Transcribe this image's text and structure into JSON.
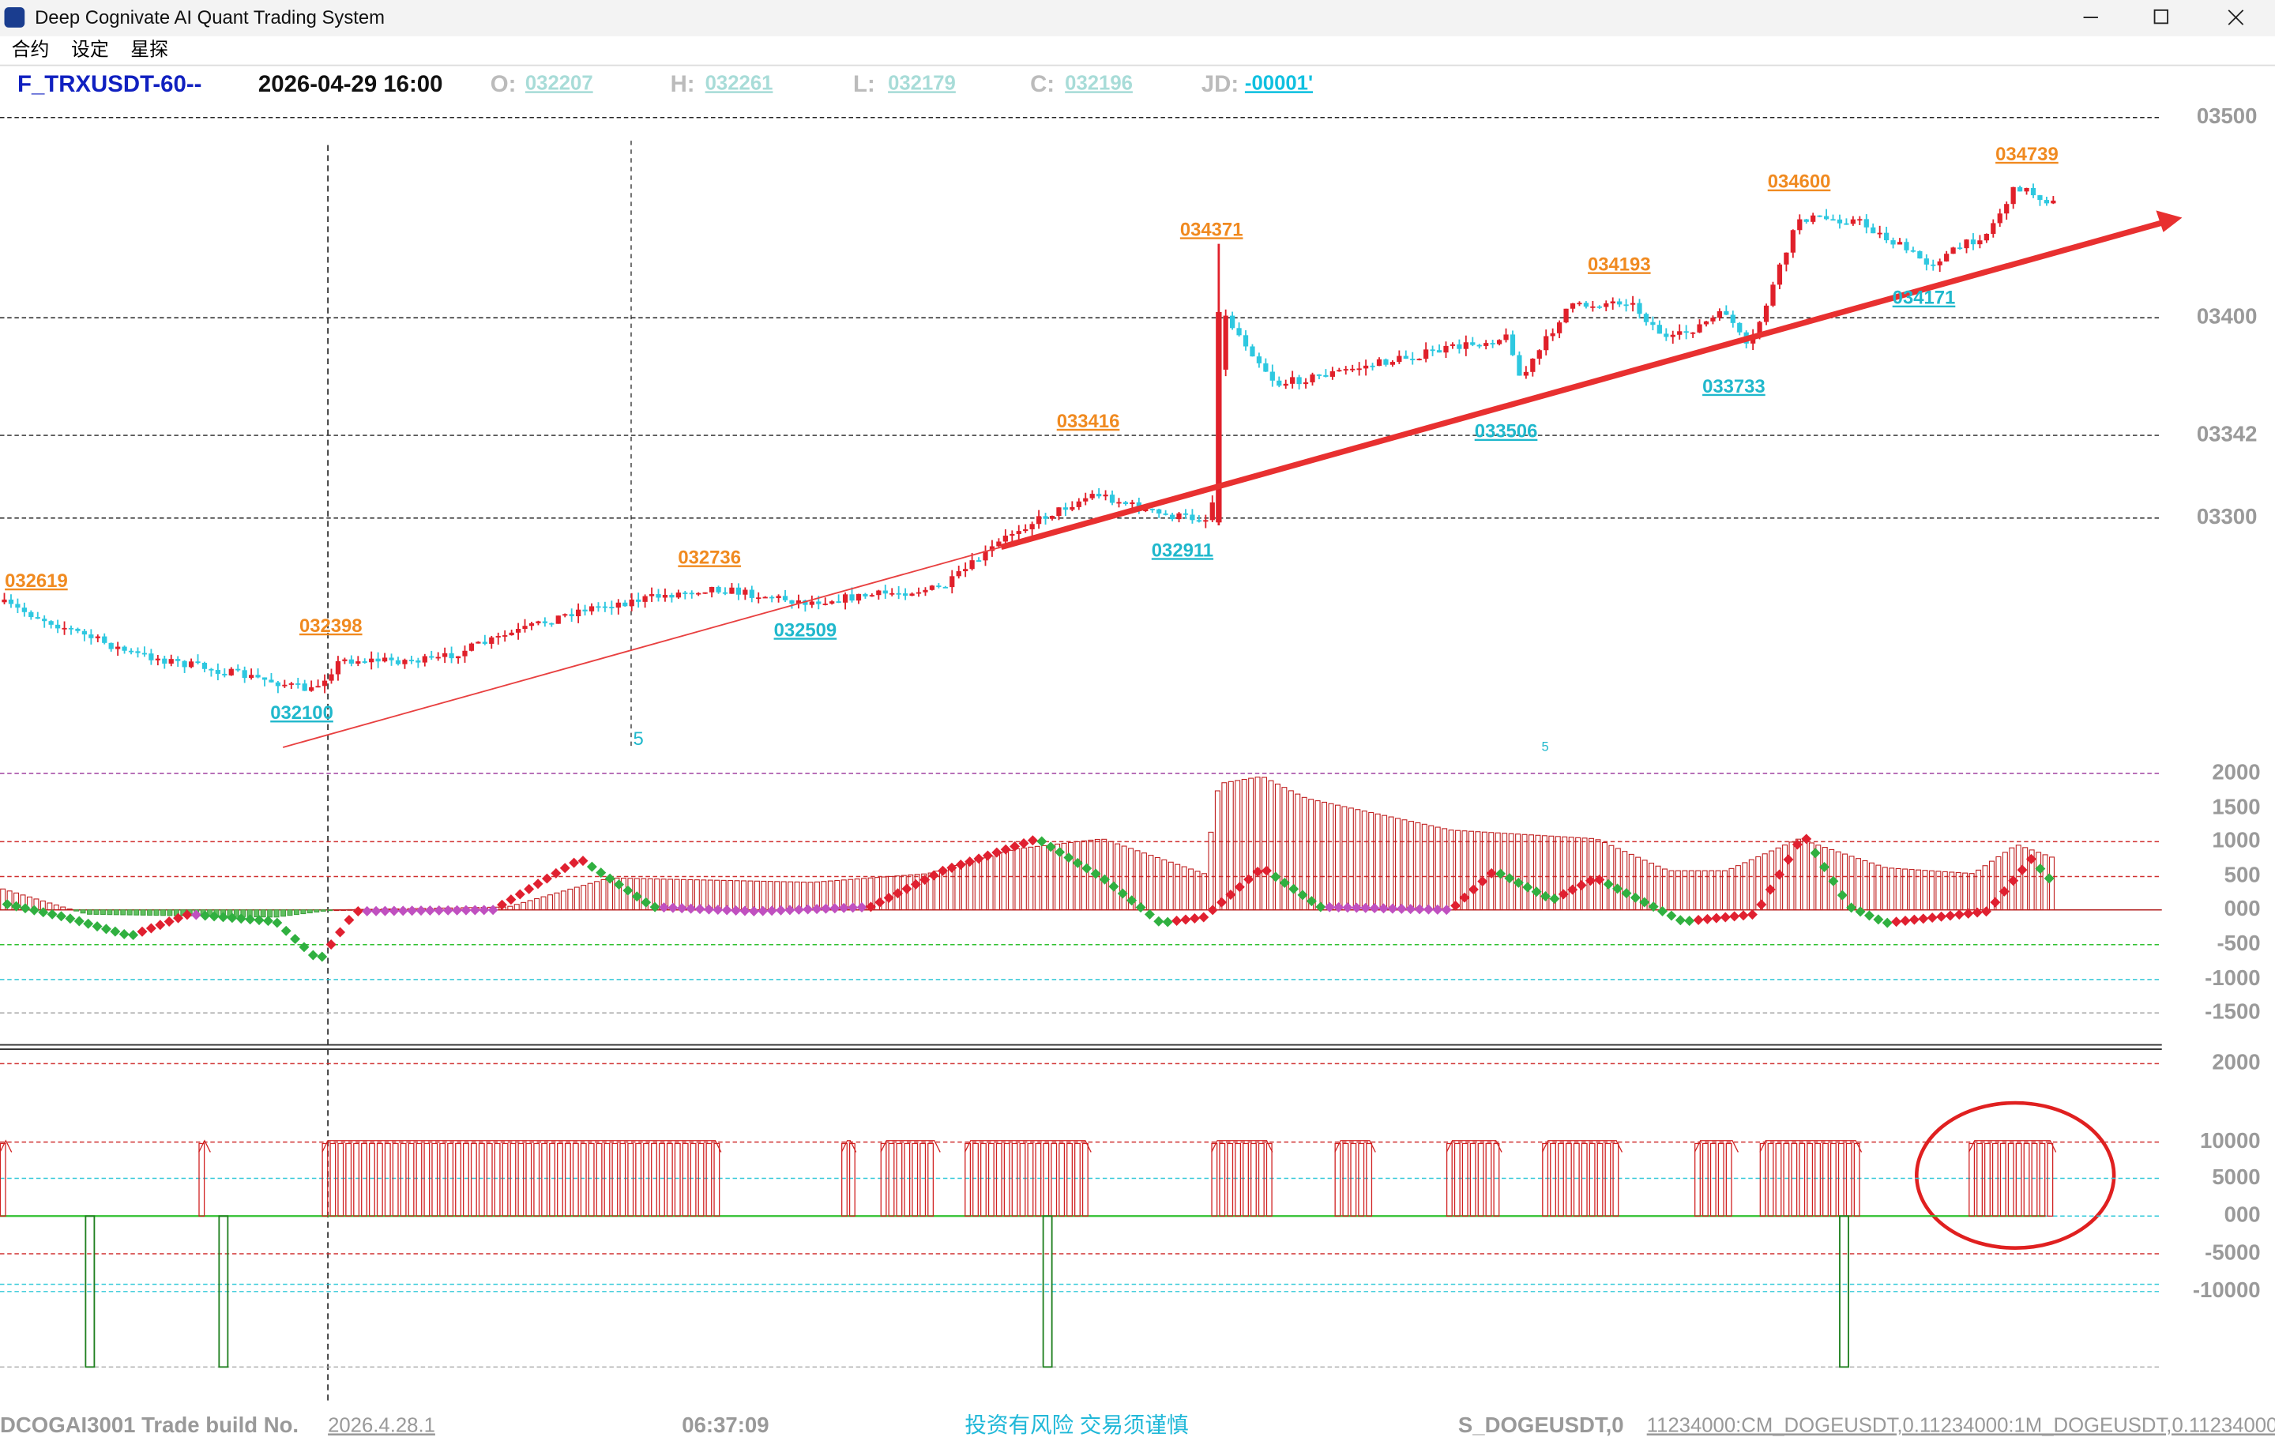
{
  "window": {
    "title": "Deep Cognivate AI Quant Trading System",
    "menu": [
      "合约",
      "设定",
      "星探"
    ]
  },
  "header": {
    "symbol": "F_TRXUSDT-60--",
    "datetime": "2026-04-29 16:00",
    "fields": [
      {
        "label": "O:",
        "value": "032207"
      },
      {
        "label": "H:",
        "value": "032261"
      },
      {
        "label": "L:",
        "value": "032179"
      },
      {
        "label": "C:",
        "value": "032196"
      },
      {
        "label": "JD:",
        "value": "-00001'"
      }
    ]
  },
  "price_axis": [
    "03500",
    "03400",
    "03342",
    "03300"
  ],
  "price_labels": [
    "032619",
    "032398",
    "032100",
    "032736",
    "032509",
    "033416",
    "032911",
    "034371",
    "033506",
    "034193",
    "033733",
    "034600",
    "034171",
    "034739"
  ],
  "markers": [
    "5",
    "5"
  ],
  "indicator_axis": [
    "2000",
    "1500",
    "1000",
    "500",
    "000",
    "-500",
    "-1000",
    "-1500"
  ],
  "signal_axis": [
    "2000",
    "10000",
    "5000",
    "000",
    "-5000",
    "-10000"
  ],
  "footer": {
    "build": "DCOGAI3001 Trade  build No.",
    "version": "2026.4.28.1",
    "time": "06:37:09",
    "warning": "投资有风险  交易须谨慎",
    "symbol": "S_DOGEUSDT,0",
    "params": "11234000:CM_DOGEUSDT,0.11234000:1M_DOGEUSDT,0.11234000"
  }
}
